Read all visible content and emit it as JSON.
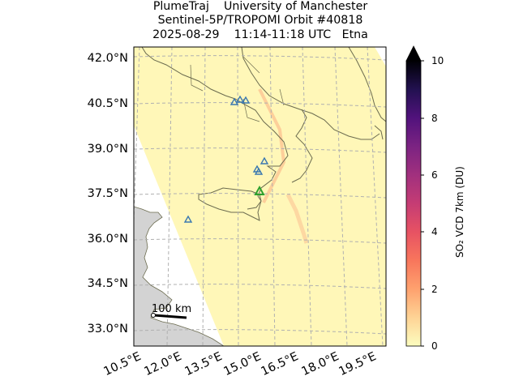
{
  "title": {
    "line1": "PlumeTraj    University of Manchester",
    "line2": "Sentinel-5P/TROPOMI Orbit #40818",
    "line3": "2025-08-29    11:14-11:18 UTC   Etna"
  },
  "lat_labels": [
    "42.0°N",
    "40.5°N",
    "39.0°N",
    "37.5°N",
    "36.0°N",
    "34.5°N",
    "33.0°N"
  ],
  "lon_labels": [
    "10.5°E",
    "12.0°E",
    "13.5°E",
    "15.0°E",
    "16.5°E",
    "18.0°E",
    "19.5°E"
  ],
  "colorbar": {
    "label": "SO₂ VCD 7km (DU)",
    "ticks": [
      "0",
      "2",
      "4",
      "6",
      "8",
      "10"
    ],
    "colormap": "magma_r",
    "extend": "max"
  },
  "scale_bar": {
    "label": "100 km"
  },
  "colors": {
    "land": "#d3d3d3",
    "swath_background": "#fff7b8",
    "coastline": "#6b6b4f",
    "grid": "#b0b0b0",
    "volcano_marker": "#3a78b0",
    "target_volcano_marker": "#2ca02c"
  }
}
